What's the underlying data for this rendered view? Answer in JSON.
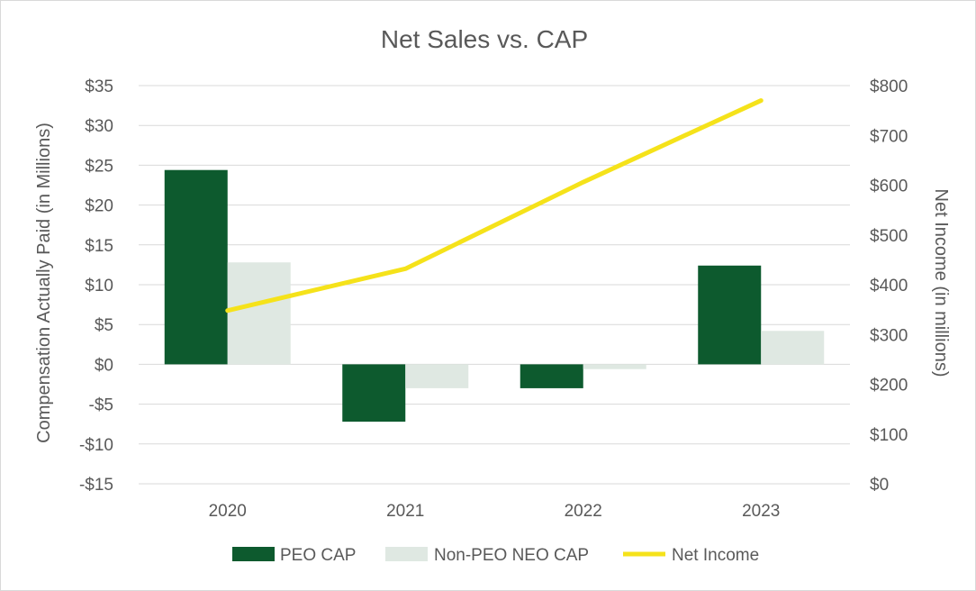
{
  "colors": {
    "peo": "#0d5a2e",
    "non_peo": "#dfe8e2",
    "net_income": "#f5e21a",
    "grid": "#d9d9d9",
    "text": "#595959"
  },
  "chart_data": {
    "type": "bar",
    "title": "Net Sales vs. CAP",
    "categories": [
      "2020",
      "2021",
      "2022",
      "2023"
    ],
    "ylabel": "Compensation Actually Paid (in Millions)",
    "ylabel_right": "Net Income (in millions)",
    "ylim": [
      -15,
      35
    ],
    "ylim_right": [
      0,
      800
    ],
    "yticks": [
      35,
      30,
      25,
      20,
      15,
      10,
      5,
      0,
      -5,
      -10,
      -15
    ],
    "yticks_labels": [
      "$35",
      "$30",
      "$25",
      "$20",
      "$15",
      "$10",
      "$5",
      "$0",
      "-$5",
      "-$10",
      "-$15"
    ],
    "yticks_right": [
      800,
      700,
      600,
      500,
      400,
      300,
      200,
      100,
      0
    ],
    "yticks_right_labels": [
      "$800",
      "$700",
      "$600",
      "$500",
      "$400",
      "$300",
      "$200",
      "$100",
      "$0"
    ],
    "grid": true,
    "legend_position": "bottom",
    "series": [
      {
        "name": "PEO CAP",
        "type": "bar",
        "axis": "left",
        "values": [
          24.4,
          -7.2,
          -3.0,
          12.4
        ]
      },
      {
        "name": "Non-PEO NEO CAP",
        "type": "bar",
        "axis": "left",
        "values": [
          12.8,
          -3.0,
          -0.6,
          4.2
        ]
      },
      {
        "name": "Net Income",
        "type": "line",
        "axis": "right",
        "values": [
          348,
          432,
          606,
          770
        ]
      }
    ]
  }
}
